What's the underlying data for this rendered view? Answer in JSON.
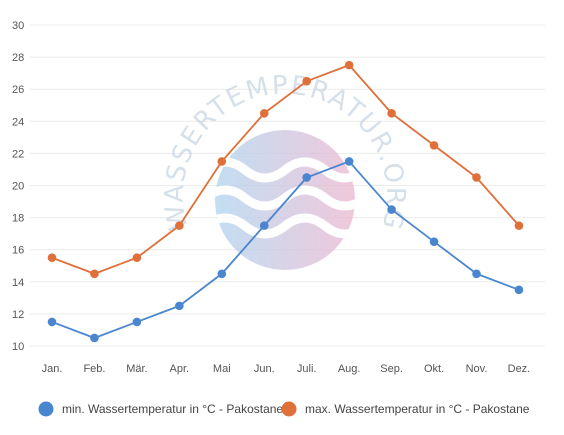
{
  "chart_data": {
    "type": "line",
    "categories": [
      "Jan.",
      "Feb.",
      "Mär.",
      "Apr.",
      "Mai",
      "Jun.",
      "Juli.",
      "Aug.",
      "Sep.",
      "Okt.",
      "Nov.",
      "Dez."
    ],
    "series": [
      {
        "name": "min. Wassertemperatur in °C - Pakostane",
        "color": "#4a86d0",
        "values": [
          11.5,
          10.5,
          11.5,
          12.5,
          14.5,
          17.5,
          20.5,
          21.5,
          18.5,
          16.5,
          14.5,
          13.5
        ]
      },
      {
        "name": "max. Wassertemperatur in °C - Pakostane",
        "color": "#e0703a",
        "values": [
          15.5,
          14.5,
          15.5,
          17.5,
          21.5,
          24.5,
          26.5,
          27.5,
          24.5,
          22.5,
          20.5,
          17.5
        ]
      }
    ],
    "ylim": [
      10,
      30
    ],
    "yticks": [
      10,
      12,
      14,
      16,
      18,
      20,
      22,
      24,
      26,
      28,
      30
    ],
    "grid": true,
    "legend": "bottom"
  },
  "watermark": {
    "text": "WASSERTEMPERATUR.ORG"
  }
}
